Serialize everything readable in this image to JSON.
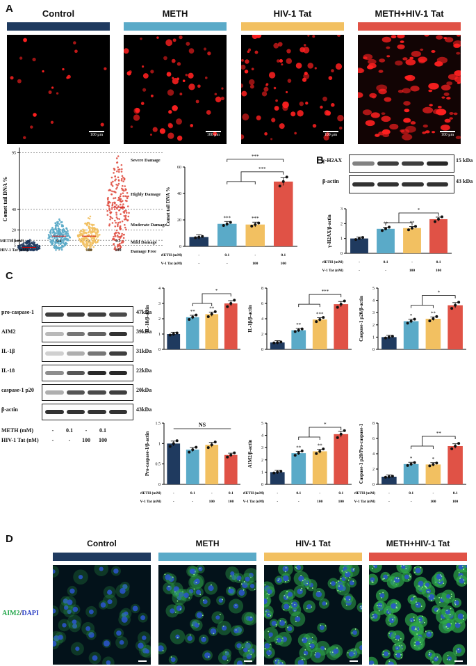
{
  "panels": {
    "a": "A",
    "b": "B",
    "c": "C",
    "d": "D"
  },
  "groups": [
    "Control",
    "METH",
    "HIV-1 Tat",
    "METH+HIV-1 Tat"
  ],
  "group_colors": [
    "#1f3a5f",
    "#5aaac8",
    "#f2c061",
    "#e05246"
  ],
  "scale_label": "100 μm",
  "treatment_rows": {
    "meth_label": "METH  (mM)",
    "tat_label": "HIV-1 Tat  (nM)",
    "meth_values": [
      "-",
      "0.1",
      "-",
      "0.1"
    ],
    "tat_values": [
      "-",
      "-",
      "100",
      "100"
    ]
  },
  "damage_levels": [
    "Severe Damage",
    "Highly Damage",
    "Moderate Damage",
    "Mild Damage",
    "Damage Free"
  ],
  "western_b": {
    "rows": [
      {
        "label": "γ-H2AX",
        "kda": "15 kDa"
      },
      {
        "label": "β-actin",
        "kda": "43 kDa"
      }
    ]
  },
  "western_c": {
    "rows": [
      {
        "label": "pro-caspase-1",
        "kda": "47kDa"
      },
      {
        "label": "AIM2",
        "kda": "39kDa"
      },
      {
        "label": "IL-1β",
        "kda": "31kDa"
      },
      {
        "label": "IL-18",
        "kda": "22kDa"
      },
      {
        "label": "caspase-1 p20",
        "kda": "20kDa"
      },
      {
        "label": "β-actin",
        "kda": "43kDa"
      }
    ],
    "meth_label": "METH  (mM)",
    "tat_label": "HIV-1 Tat  (nM)"
  },
  "stain_label": {
    "green": "AIM2",
    "sep": "/",
    "blue": "DAPI"
  },
  "chart_data": [
    {
      "id": "comet-scatter",
      "type": "scatter",
      "ylabel": "Comet tail DNA %",
      "yticks": [
        5,
        10,
        20,
        40,
        95
      ],
      "ylim": [
        0,
        100
      ]
    },
    {
      "id": "comet-bar",
      "type": "bar",
      "ylabel": "Comet tail DNA %",
      "yticks": [
        0,
        20,
        40,
        60
      ],
      "ylim": [
        0,
        60
      ],
      "values": [
        7,
        17,
        16.5,
        49
      ],
      "sig": [
        "",
        "***",
        "***",
        ""
      ],
      "brackets": [
        "***",
        "***"
      ]
    },
    {
      "id": "h2ax",
      "type": "bar",
      "ylabel": "γ-H2AX/β-actin",
      "yticks": [
        0,
        1,
        2,
        3
      ],
      "ylim": [
        0,
        3
      ],
      "values": [
        1.0,
        1.65,
        1.7,
        2.3
      ],
      "sig": [
        "",
        "**",
        "**",
        ""
      ],
      "brackets": [
        "*"
      ]
    },
    {
      "id": "il18",
      "type": "bar",
      "ylabel": "IL-18/β-actin",
      "yticks": [
        0,
        1,
        2,
        3,
        4
      ],
      "ylim": [
        0,
        4
      ],
      "values": [
        1.0,
        2.1,
        2.3,
        3.0
      ],
      "sig": [
        "",
        "**",
        "**",
        ""
      ],
      "brackets": [
        "*"
      ]
    },
    {
      "id": "il1b",
      "type": "bar",
      "ylabel": "IL-1β/β-actin",
      "yticks": [
        0,
        2,
        4,
        6,
        8
      ],
      "ylim": [
        0,
        8
      ],
      "values": [
        0.9,
        2.5,
        3.9,
        5.9
      ],
      "sig": [
        "",
        "**",
        "***",
        ""
      ],
      "brackets": [
        "***"
      ]
    },
    {
      "id": "casp_actin",
      "type": "bar",
      "ylabel": "Caspase-1 p20/β-actin",
      "yticks": [
        0,
        1,
        2,
        3,
        4,
        5
      ],
      "ylim": [
        0,
        5
      ],
      "values": [
        1.0,
        2.3,
        2.5,
        3.6
      ],
      "sig": [
        "",
        "*",
        "**",
        ""
      ],
      "brackets": [
        "*"
      ]
    },
    {
      "id": "procasp",
      "type": "bar",
      "ylabel": "Pro-caspase-1/β-actin",
      "yticks": [
        0.0,
        0.5,
        1.0,
        1.5
      ],
      "ylim": [
        0,
        1.5
      ],
      "values": [
        1.0,
        0.85,
        0.97,
        0.72
      ],
      "sig": [
        "",
        "",
        "",
        ""
      ],
      "brackets": [
        "NS"
      ]
    },
    {
      "id": "aim2",
      "type": "bar",
      "ylabel": "AIM2/β-actin",
      "yticks": [
        0,
        1,
        2,
        3,
        4,
        5
      ],
      "ylim": [
        0,
        5
      ],
      "values": [
        1.0,
        2.55,
        2.7,
        4.1
      ],
      "sig": [
        "",
        "**",
        "**",
        ""
      ],
      "brackets": [
        "*"
      ]
    },
    {
      "id": "casp_ratio",
      "type": "bar",
      "ylabel": "Caspase-1 p20/Pro-caspase-1",
      "yticks": [
        0,
        2,
        4,
        6,
        8
      ],
      "ylim": [
        0,
        8
      ],
      "values": [
        1.0,
        2.65,
        2.6,
        5.0
      ],
      "sig": [
        "",
        "*",
        "*",
        ""
      ],
      "brackets": [
        "**"
      ]
    }
  ]
}
